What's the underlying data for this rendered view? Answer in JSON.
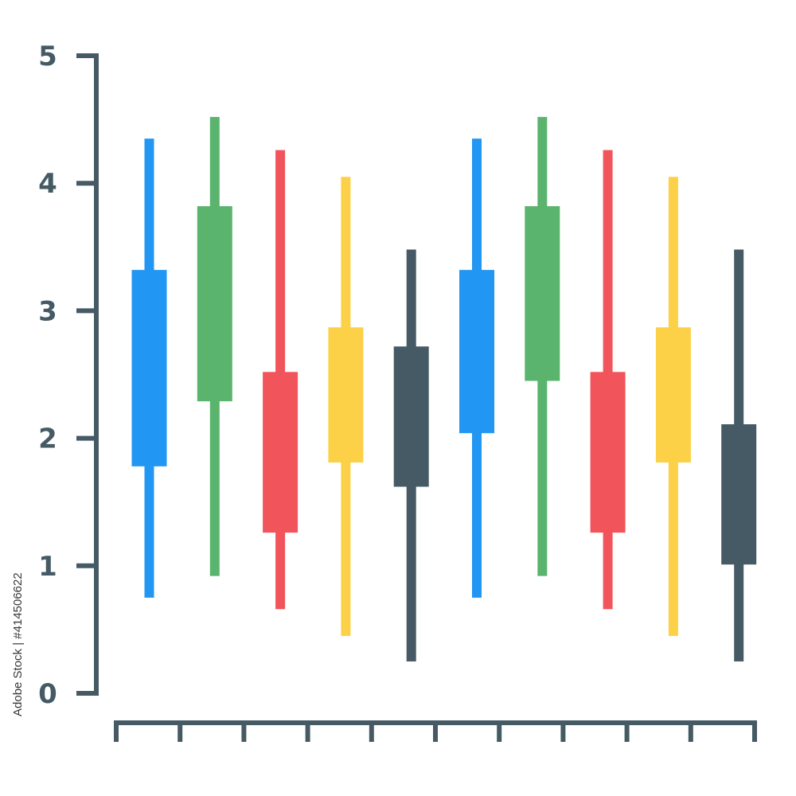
{
  "chart_data": {
    "type": "candlestick",
    "y_tick_labels": [
      "0",
      "1",
      "2",
      "3",
      "4",
      "5"
    ],
    "ylim": [
      0,
      5
    ],
    "x_tick_count": 11,
    "grid": false,
    "colors": {
      "axis": "#455a64",
      "blue": "#2196f3",
      "green": "#5ab46d",
      "red": "#f2545b",
      "yellow": "#fdd147",
      "dark": "#455a64"
    },
    "candles": [
      {
        "low": 0.75,
        "open": 1.78,
        "close": 3.32,
        "high": 4.35,
        "color": "#2196f3"
      },
      {
        "low": 0.92,
        "open": 2.29,
        "close": 3.82,
        "high": 4.52,
        "color": "#5ab46d"
      },
      {
        "low": 0.66,
        "open": 1.26,
        "close": 2.52,
        "high": 4.26,
        "color": "#f2545b"
      },
      {
        "low": 0.45,
        "open": 1.81,
        "close": 2.87,
        "high": 4.05,
        "color": "#fdd147"
      },
      {
        "low": 0.25,
        "open": 1.62,
        "close": 2.72,
        "high": 3.48,
        "color": "#455a64"
      },
      {
        "low": 0.75,
        "open": 2.04,
        "close": 3.32,
        "high": 4.35,
        "color": "#2196f3"
      },
      {
        "low": 0.92,
        "open": 2.45,
        "close": 3.82,
        "high": 4.52,
        "color": "#5ab46d"
      },
      {
        "low": 0.66,
        "open": 1.26,
        "close": 2.52,
        "high": 4.26,
        "color": "#f2545b"
      },
      {
        "low": 0.45,
        "open": 1.81,
        "close": 2.87,
        "high": 4.05,
        "color": "#fdd147"
      },
      {
        "low": 0.25,
        "open": 1.01,
        "close": 2.11,
        "high": 3.48,
        "color": "#455a64"
      }
    ]
  },
  "watermark": {
    "stock_id": "Adobe Stock | #414506622"
  }
}
